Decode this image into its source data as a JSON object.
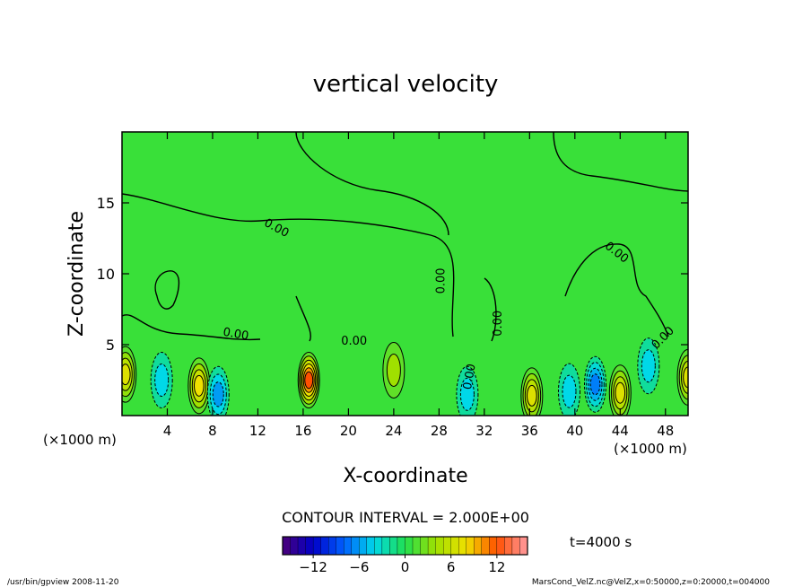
{
  "chart_data": {
    "type": "contour",
    "title": "vertical velocity",
    "xlabel": "X-coordinate",
    "ylabel": "Z-coordinate",
    "x_unit": "(×1000 m)",
    "z_unit": "(×1000 m)",
    "xlim": [
      0,
      50
    ],
    "ylim": [
      0,
      20
    ],
    "xticks": [
      "4",
      "8",
      "12",
      "16",
      "20",
      "24",
      "28",
      "32",
      "36",
      "40",
      "44",
      "48"
    ],
    "yticks": [
      "5",
      "10",
      "15"
    ],
    "contour_interval": "CONTOUR INTERVAL = 2.000E+00",
    "time_label": "t=4000 s",
    "colorbar": {
      "ticks": [
        "−12",
        "−6",
        "0",
        "6",
        "12"
      ],
      "tick_values": [
        -12,
        -6,
        0,
        6,
        12
      ],
      "range": [
        -16,
        16
      ]
    },
    "contour_labels": [
      "0.00",
      "0.00",
      "0.00",
      "0.00",
      "0.00",
      "0.00",
      "0.00",
      "0.00"
    ],
    "updraft_cores": [
      {
        "x": 0.3,
        "z": 2.9,
        "w": 7
      },
      {
        "x": 6.8,
        "z": 2.1,
        "w": 8
      },
      {
        "x": 16.5,
        "z": 2.5,
        "w": 12
      },
      {
        "x": 24.0,
        "z": 3.2,
        "w": 4
      },
      {
        "x": 36.2,
        "z": 1.4,
        "w": 7
      },
      {
        "x": 44.0,
        "z": 1.6,
        "w": 7
      },
      {
        "x": 50.0,
        "z": 2.7,
        "w": 7
      }
    ],
    "downdraft_cores": [
      {
        "x": 3.5,
        "z": 2.5,
        "w": -4
      },
      {
        "x": 8.5,
        "z": 1.5,
        "w": -6
      },
      {
        "x": 30.5,
        "z": 1.5,
        "w": -4
      },
      {
        "x": 39.5,
        "z": 1.7,
        "w": -4
      },
      {
        "x": 41.8,
        "z": 2.2,
        "w": -7
      },
      {
        "x": 46.5,
        "z": 3.5,
        "w": -4
      }
    ]
  },
  "footer": {
    "left": "/usr/bin/gpview   2008-11-20",
    "right": "MarsCond_VelZ.nc@VelZ,x=0:50000,z=0:20000,t=004000"
  }
}
